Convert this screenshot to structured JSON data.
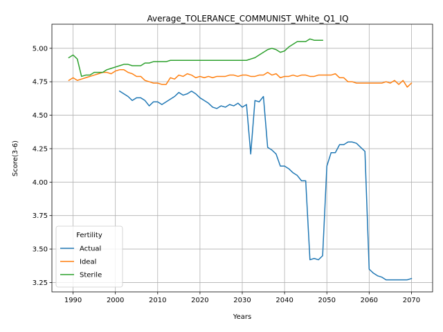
{
  "chart_data": {
    "type": "line",
    "title": "Average_TOLERANCE_COMMUNIST_White_Q1_IQ",
    "xlabel": "Years",
    "ylabel": "Score(3-6)",
    "xlim": [
      1985,
      2075
    ],
    "ylim": [
      3.18,
      5.18
    ],
    "xticks": [
      "1990",
      "2000",
      "2010",
      "2020",
      "2030",
      "2040",
      "2050",
      "2060",
      "2070"
    ],
    "yticks": [
      "3.25",
      "3.50",
      "3.75",
      "4.00",
      "4.25",
      "4.50",
      "4.75",
      "5.00"
    ],
    "grid": true,
    "legend": {
      "title": "Fertility",
      "placement": "lower-left"
    },
    "series": [
      {
        "name": "Actual",
        "color": "#1f77b4",
        "x": [
          2001,
          2002,
          2003,
          2004,
          2005,
          2006,
          2007,
          2008,
          2009,
          2010,
          2011,
          2012,
          2013,
          2014,
          2015,
          2016,
          2017,
          2018,
          2019,
          2020,
          2021,
          2022,
          2023,
          2024,
          2025,
          2026,
          2027,
          2028,
          2029,
          2030,
          2031,
          2032,
          2033,
          2034,
          2035,
          2036,
          2037,
          2038,
          2039,
          2040,
          2041,
          2042,
          2043,
          2044,
          2045,
          2046,
          2047,
          2048,
          2049,
          2050,
          2051,
          2052,
          2053,
          2054,
          2055,
          2056,
          2057,
          2058,
          2059,
          2060,
          2061,
          2062,
          2063,
          2064,
          2065,
          2066,
          2067,
          2068,
          2069,
          2070
        ],
        "y": [
          4.68,
          4.66,
          4.64,
          4.61,
          4.63,
          4.63,
          4.61,
          4.57,
          4.6,
          4.6,
          4.58,
          4.6,
          4.62,
          4.64,
          4.67,
          4.65,
          4.66,
          4.68,
          4.66,
          4.63,
          4.61,
          4.59,
          4.56,
          4.55,
          4.57,
          4.56,
          4.58,
          4.57,
          4.59,
          4.56,
          4.58,
          4.21,
          4.61,
          4.6,
          4.64,
          4.26,
          4.24,
          4.21,
          4.12,
          4.12,
          4.1,
          4.07,
          4.05,
          4.01,
          4.01,
          3.42,
          3.43,
          3.42,
          3.45,
          4.12,
          4.22,
          4.22,
          4.28,
          4.28,
          4.3,
          4.3,
          4.29,
          4.26,
          4.23,
          3.35,
          3.32,
          3.3,
          3.29,
          3.27,
          3.27,
          3.27,
          3.27,
          3.27,
          3.27,
          3.28
        ]
      },
      {
        "name": "Ideal",
        "color": "#ff7f0e",
        "x": [
          1989,
          1990,
          1991,
          1992,
          1993,
          1994,
          1995,
          1996,
          1997,
          1998,
          1999,
          2000,
          2001,
          2002,
          2003,
          2004,
          2005,
          2006,
          2007,
          2008,
          2009,
          2010,
          2011,
          2012,
          2013,
          2014,
          2015,
          2016,
          2017,
          2018,
          2019,
          2020,
          2021,
          2022,
          2023,
          2024,
          2025,
          2026,
          2027,
          2028,
          2029,
          2030,
          2031,
          2032,
          2033,
          2034,
          2035,
          2036,
          2037,
          2038,
          2039,
          2040,
          2041,
          2042,
          2043,
          2044,
          2045,
          2046,
          2047,
          2048,
          2049,
          2050,
          2051,
          2052,
          2053,
          2054,
          2055,
          2056,
          2057,
          2058,
          2059,
          2060,
          2061,
          2062,
          2063,
          2064,
          2065,
          2066,
          2067,
          2068,
          2069,
          2070
        ],
        "y": [
          4.76,
          4.78,
          4.76,
          4.77,
          4.78,
          4.79,
          4.8,
          4.81,
          4.82,
          4.82,
          4.81,
          4.83,
          4.84,
          4.84,
          4.82,
          4.81,
          4.79,
          4.79,
          4.76,
          4.75,
          4.74,
          4.74,
          4.73,
          4.73,
          4.78,
          4.77,
          4.8,
          4.79,
          4.81,
          4.8,
          4.78,
          4.79,
          4.78,
          4.79,
          4.78,
          4.79,
          4.79,
          4.79,
          4.8,
          4.8,
          4.79,
          4.8,
          4.8,
          4.79,
          4.79,
          4.8,
          4.8,
          4.82,
          4.8,
          4.81,
          4.78,
          4.79,
          4.79,
          4.8,
          4.79,
          4.8,
          4.8,
          4.79,
          4.79,
          4.8,
          4.8,
          4.8,
          4.8,
          4.81,
          4.78,
          4.78,
          4.75,
          4.75,
          4.74,
          4.74,
          4.74,
          4.74,
          4.74,
          4.74,
          4.74,
          4.75,
          4.74,
          4.76,
          4.73,
          4.76,
          4.71,
          4.74
        ]
      },
      {
        "name": "Sterile",
        "color": "#2ca02c",
        "x": [
          1989,
          1990,
          1991,
          1992,
          1993,
          1994,
          1995,
          1996,
          1997,
          1998,
          1999,
          2000,
          2001,
          2002,
          2003,
          2004,
          2005,
          2006,
          2007,
          2008,
          2009,
          2010,
          2011,
          2012,
          2013,
          2014,
          2015,
          2016,
          2017,
          2018,
          2019,
          2020,
          2021,
          2022,
          2023,
          2024,
          2025,
          2026,
          2027,
          2028,
          2029,
          2030,
          2031,
          2032,
          2033,
          2034,
          2035,
          2036,
          2037,
          2038,
          2039,
          2040,
          2041,
          2042,
          2043,
          2044,
          2045,
          2046,
          2047,
          2048,
          2049
        ],
        "y": [
          4.93,
          4.95,
          4.92,
          4.79,
          4.8,
          4.8,
          4.82,
          4.82,
          4.82,
          4.84,
          4.85,
          4.86,
          4.87,
          4.88,
          4.88,
          4.87,
          4.87,
          4.87,
          4.89,
          4.89,
          4.9,
          4.9,
          4.9,
          4.9,
          4.91,
          4.91,
          4.91,
          4.91,
          4.91,
          4.91,
          4.91,
          4.91,
          4.91,
          4.91,
          4.91,
          4.91,
          4.91,
          4.91,
          4.91,
          4.91,
          4.91,
          4.91,
          4.91,
          4.92,
          4.93,
          4.95,
          4.97,
          4.99,
          5.0,
          4.99,
          4.97,
          4.98,
          5.01,
          5.03,
          5.05,
          5.05,
          5.05,
          5.07,
          5.06,
          5.06,
          5.06
        ]
      }
    ]
  }
}
